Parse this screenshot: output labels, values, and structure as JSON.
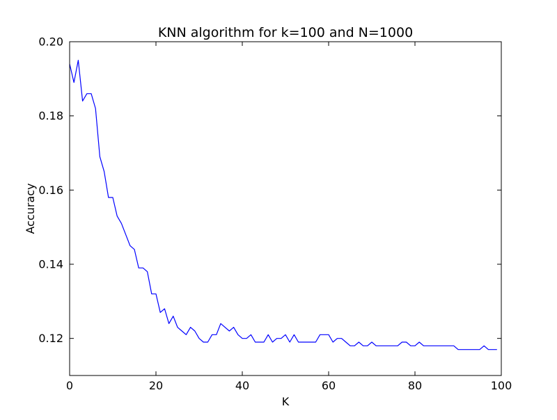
{
  "chart_data": {
    "type": "line",
    "title": "KNN algorithm for k=100 and N=1000",
    "xlabel": "K",
    "ylabel": "Accuracy",
    "xlim": [
      0,
      100
    ],
    "ylim": [
      0.11,
      0.2
    ],
    "x_ticks": [
      0,
      20,
      40,
      60,
      80,
      100
    ],
    "y_ticks": [
      0.12,
      0.14,
      0.16,
      0.18,
      0.2
    ],
    "x_tick_labels": [
      "0",
      "20",
      "40",
      "60",
      "80",
      "100"
    ],
    "y_tick_labels": [
      "0.12",
      "0.14",
      "0.16",
      "0.18",
      "0.20"
    ],
    "grid": false,
    "legend": "none",
    "line_color": "#0000ff",
    "series": [
      {
        "x": [
          0,
          1,
          2,
          3,
          4,
          5,
          6,
          7,
          8,
          9,
          10,
          11,
          12,
          13,
          14,
          15,
          16,
          17,
          18,
          19,
          20,
          21,
          22,
          23,
          24,
          25,
          26,
          27,
          28,
          29,
          30,
          31,
          32,
          33,
          34,
          35,
          36,
          37,
          38,
          39,
          40,
          41,
          42,
          43,
          44,
          45,
          46,
          47,
          48,
          49,
          50,
          51,
          52,
          53,
          54,
          55,
          56,
          57,
          58,
          59,
          60,
          61,
          62,
          63,
          64,
          65,
          66,
          67,
          68,
          69,
          70,
          71,
          72,
          73,
          74,
          75,
          76,
          77,
          78,
          79,
          80,
          81,
          82,
          83,
          84,
          85,
          86,
          87,
          88,
          89,
          90,
          91,
          92,
          93,
          94,
          95,
          96,
          97,
          98,
          99
        ],
        "y": [
          0.194,
          0.189,
          0.195,
          0.184,
          0.186,
          0.186,
          0.182,
          0.169,
          0.165,
          0.158,
          0.158,
          0.153,
          0.151,
          0.148,
          0.145,
          0.144,
          0.139,
          0.139,
          0.138,
          0.132,
          0.132,
          0.127,
          0.128,
          0.124,
          0.126,
          0.123,
          0.122,
          0.121,
          0.123,
          0.122,
          0.12,
          0.119,
          0.119,
          0.121,
          0.121,
          0.124,
          0.123,
          0.122,
          0.123,
          0.121,
          0.12,
          0.12,
          0.121,
          0.119,
          0.119,
          0.119,
          0.121,
          0.119,
          0.12,
          0.12,
          0.121,
          0.119,
          0.121,
          0.119,
          0.119,
          0.119,
          0.119,
          0.119,
          0.121,
          0.121,
          0.121,
          0.119,
          0.12,
          0.12,
          0.119,
          0.118,
          0.118,
          0.119,
          0.118,
          0.118,
          0.119,
          0.118,
          0.118,
          0.118,
          0.118,
          0.118,
          0.118,
          0.119,
          0.119,
          0.118,
          0.118,
          0.119,
          0.118,
          0.118,
          0.118,
          0.118,
          0.118,
          0.118,
          0.118,
          0.118,
          0.117,
          0.117,
          0.117,
          0.117,
          0.117,
          0.117,
          0.118,
          0.117,
          0.117,
          0.117
        ]
      }
    ]
  }
}
